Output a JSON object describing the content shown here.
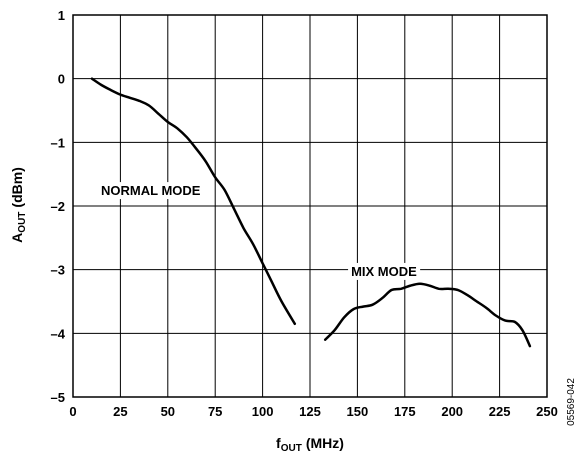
{
  "chart_data": {
    "type": "line",
    "xlabel": {
      "main": "f",
      "sub": "OUT",
      "unit": "(MHz)"
    },
    "ylabel": {
      "main": "A",
      "sub": "OUT",
      "unit": "(dBm)"
    },
    "xlim": [
      0,
      250
    ],
    "ylim": [
      -5,
      1
    ],
    "xticks": [
      0,
      25,
      50,
      75,
      100,
      125,
      150,
      175,
      200,
      225,
      250
    ],
    "yticks": [
      1,
      0,
      -1,
      -2,
      -3,
      -4,
      -5
    ],
    "ytick_labels": [
      "1",
      "0",
      "–1",
      "–2",
      "–3",
      "–4",
      "–5"
    ],
    "grid": true,
    "series": [
      {
        "name": "NORMAL MODE",
        "color": "#000000",
        "x": [
          10,
          15,
          20,
          25,
          30,
          35,
          40,
          45,
          50,
          55,
          60,
          65,
          70,
          75,
          80,
          85,
          90,
          95,
          100,
          105,
          110,
          117
        ],
        "y": [
          0,
          -0.1,
          -0.18,
          -0.25,
          -0.3,
          -0.35,
          -0.42,
          -0.55,
          -0.68,
          -0.78,
          -0.92,
          -1.1,
          -1.3,
          -1.55,
          -1.75,
          -2.05,
          -2.35,
          -2.6,
          -2.9,
          -3.2,
          -3.5,
          -3.85
        ]
      },
      {
        "name": "MIX MODE",
        "color": "#000000",
        "x": [
          133,
          138,
          143,
          148,
          153,
          158,
          163,
          168,
          173,
          178,
          183,
          188,
          193,
          198,
          203,
          208,
          213,
          218,
          223,
          228,
          233,
          237,
          241
        ],
        "y": [
          -4.1,
          -3.95,
          -3.75,
          -3.62,
          -3.58,
          -3.55,
          -3.45,
          -3.32,
          -3.3,
          -3.25,
          -3.22,
          -3.25,
          -3.3,
          -3.3,
          -3.32,
          -3.4,
          -3.5,
          -3.6,
          -3.72,
          -3.8,
          -3.82,
          -3.95,
          -4.2
        ]
      }
    ],
    "annotations": [
      {
        "text": "NORMAL MODE",
        "x": 41,
        "y": -1.75
      },
      {
        "text": "MIX MODE",
        "x": 164,
        "y": -3.02
      }
    ]
  },
  "figure_code": "05569-042"
}
